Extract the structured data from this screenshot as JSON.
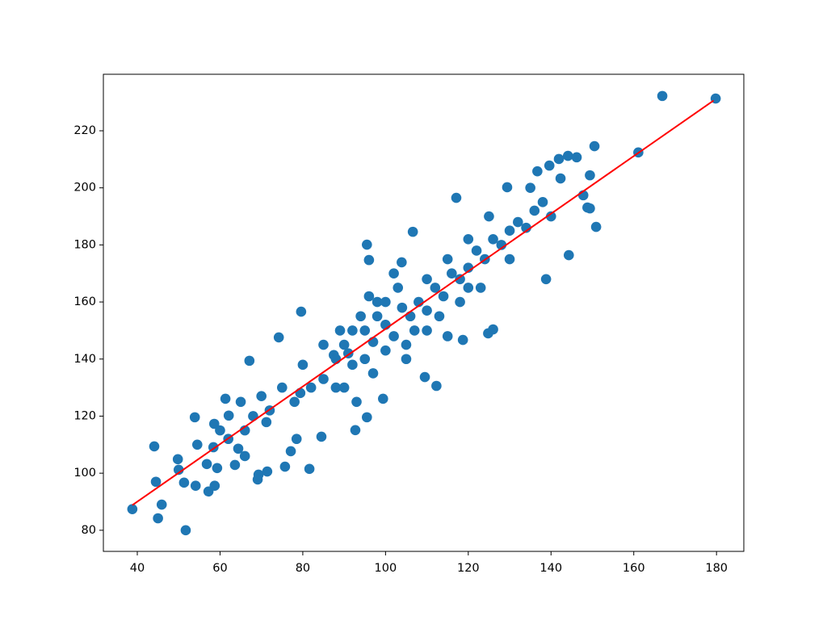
{
  "chart_data": {
    "type": "scatter",
    "xlim": [
      31.8,
      186.6
    ],
    "ylim": [
      72.6,
      239.8
    ],
    "xticks": [
      40,
      60,
      80,
      100,
      120,
      140,
      160,
      180
    ],
    "yticks": [
      80,
      100,
      120,
      140,
      160,
      180,
      200,
      220
    ],
    "series": [
      {
        "type": "scatter",
        "color": "#1f77b4",
        "x": [
          38.8,
          166.9,
          179.8,
          161.1,
          150.5,
          150.9,
          149.4,
          148.8,
          51.7,
          45.0,
          44.1,
          44.5,
          45.9,
          49.8,
          50.0,
          51.3,
          53.9,
          54.1,
          54.5,
          57.2,
          58.7,
          59.3,
          56.8,
          58.4,
          58.6,
          61.3,
          63.6,
          64.4,
          66.0,
          67.1,
          69.3,
          69.1,
          71.4,
          75.7,
          77.1,
          81.6,
          79.4,
          74.2,
          79.6,
          95.5,
          96.0,
          112.3,
          109.5,
          124.8,
          126.0,
          118.7,
          138.8,
          144.3,
          139.6,
          144.1,
          146.2,
          147.8,
          149.4,
          141.9,
          142.3,
          136.7,
          129.4,
          117.1,
          106.6,
          103.9,
          87.5,
          92.7,
          99.4,
          95.5,
          84.5,
          78.5,
          71.2,
          62.1,
          85,
          88,
          90,
          92,
          95,
          97,
          100,
          102,
          104,
          106,
          108,
          110,
          112,
          114,
          116,
          118,
          120,
          122,
          124,
          126,
          128,
          130,
          132,
          134,
          136,
          138,
          140,
          92,
          95,
          98,
          100,
          103,
          105,
          107,
          110,
          113,
          115,
          118,
          120,
          123,
          88,
          85,
          82,
          80,
          78,
          75,
          72,
          70,
          68,
          65,
          66,
          62,
          60,
          102,
          97,
          93,
          90,
          125,
          130,
          135,
          100,
          105,
          110,
          115,
          120,
          98,
          96,
          94,
          91,
          89
        ],
        "y": [
          87.4,
          232.2,
          231.3,
          212.4,
          214.6,
          186.3,
          204.4,
          193.1,
          80.0,
          84.2,
          109.4,
          97.0,
          89.0,
          104.9,
          101.2,
          96.7,
          119.6,
          95.6,
          110.0,
          93.6,
          95.6,
          101.8,
          103.2,
          109.1,
          117.3,
          126.1,
          102.9,
          108.6,
          106.0,
          139.4,
          99.5,
          97.8,
          100.6,
          102.3,
          107.7,
          101.5,
          128.1,
          147.6,
          156.6,
          180.1,
          174.7,
          130.6,
          133.7,
          149.0,
          150.4,
          146.7,
          168.0,
          176.4,
          207.8,
          211.2,
          210.7,
          197.4,
          192.8,
          210.1,
          203.3,
          205.8,
          200.2,
          196.5,
          184.6,
          173.9,
          141.4,
          115.1,
          126.1,
          119.6,
          112.8,
          112.0,
          117.9,
          120.2,
          133,
          140,
          145,
          138,
          150,
          146,
          152,
          148,
          158,
          155,
          160,
          157,
          165,
          162,
          170,
          168,
          172,
          178,
          175,
          182,
          180,
          185,
          188,
          186,
          192,
          195,
          190,
          150,
          140,
          160,
          143,
          165,
          145,
          150,
          168,
          155,
          175,
          160,
          182,
          165,
          130,
          145,
          130,
          138,
          125,
          130,
          122,
          127,
          120,
          125,
          115,
          112,
          115,
          170,
          135,
          125,
          130,
          190,
          175,
          200,
          160,
          140,
          150,
          148,
          165,
          155,
          162,
          155,
          142,
          150
        ]
      },
      {
        "type": "line",
        "color": "#ff0000",
        "x": [
          38.8,
          179.3
        ],
        "y": [
          88.8,
          230.6
        ]
      }
    ]
  }
}
